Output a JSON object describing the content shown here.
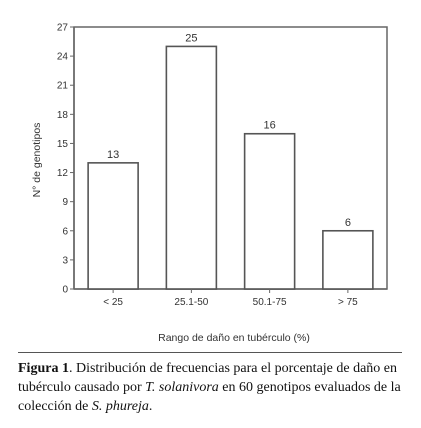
{
  "chart_data": {
    "type": "bar",
    "categories": [
      "< 25",
      "25.1-50",
      "50.1-75",
      "> 75"
    ],
    "values": [
      13,
      25,
      16,
      6
    ],
    "data_labels": [
      "13",
      "25",
      "16",
      "6"
    ],
    "ylabel": "N° de genotipos",
    "xlabel": "Rango de daño en tubérculo (%)",
    "ylim": [
      0,
      27
    ],
    "yticks": [
      0,
      3,
      6,
      9,
      12,
      15,
      18,
      21,
      24,
      27
    ],
    "grid": false,
    "bar_fill": "#ffffff",
    "bar_stroke": "#555555",
    "frame_color": "#666666"
  },
  "caption": {
    "label": "Figura 1",
    "text1": ". Distribución de frecuencias para el porcentaje de daño en tubérculo causado por ",
    "species1": "T. solanivora",
    "text2": " en 60 genotipos evaluados de la colección de ",
    "species2": "S. phureja",
    "text3": "."
  }
}
